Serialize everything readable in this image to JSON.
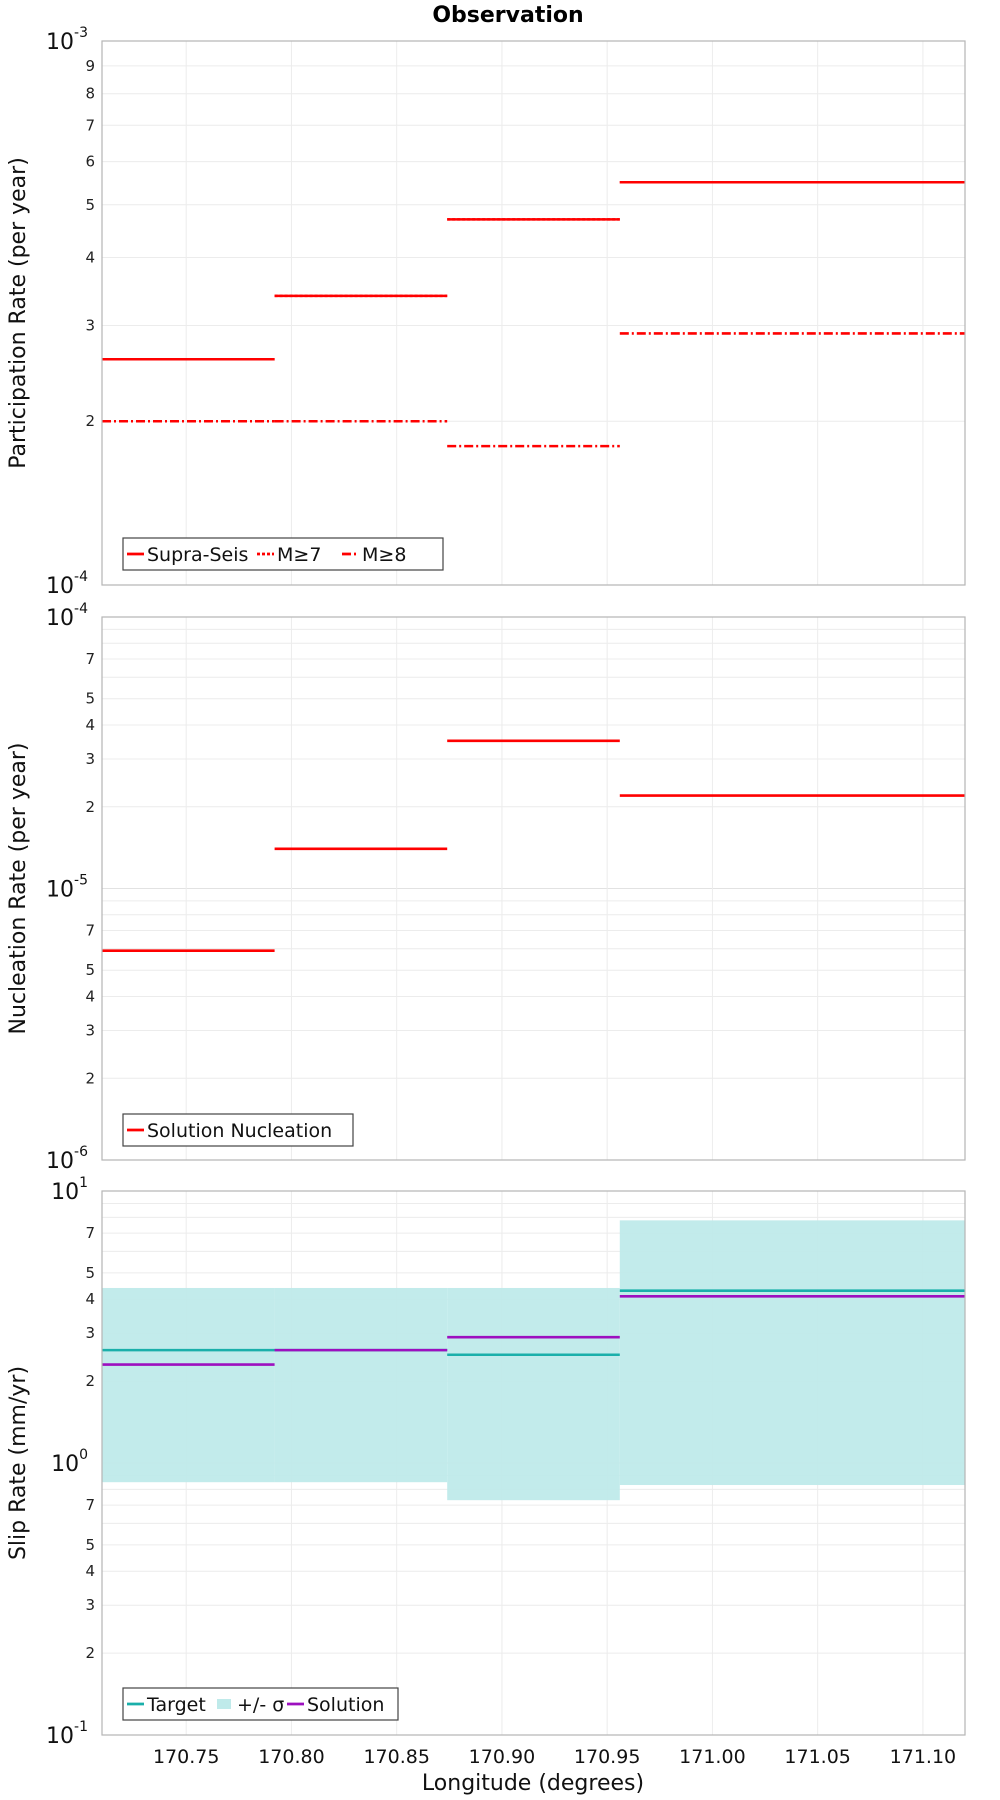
{
  "figure": {
    "title": "Observation",
    "xlabel": "Longitude (degrees)",
    "x_ticks": [
      170.75,
      170.8,
      170.85,
      170.9,
      170.95,
      171.0,
      171.05,
      171.1
    ],
    "x_tick_labels": [
      "170.75",
      "170.80",
      "170.85",
      "170.90",
      "170.95",
      "171.00",
      "171.05",
      "171.10"
    ],
    "xlim": [
      170.71,
      171.12
    ]
  },
  "chart_data": [
    {
      "type": "line",
      "step": true,
      "title": "Observation",
      "ylabel": "Participation Rate (per year)",
      "y_scale": "log",
      "ylim": [
        0.0001,
        0.001
      ],
      "grid": true,
      "legend_position": "bottom-left",
      "x_bins": [
        [
          170.71,
          170.792
        ],
        [
          170.792,
          170.874
        ],
        [
          170.874,
          170.956
        ],
        [
          170.956,
          171.12
        ]
      ],
      "series": [
        {
          "name": "Supra-Seis",
          "style": "solid",
          "color": "#ff0000",
          "values": [
            0.00026,
            0.00034,
            0.00047,
            0.00055
          ]
        },
        {
          "name": "M≥7",
          "style": "dotted",
          "color": "#ff0000",
          "values": [
            0.00026,
            0.00034,
            0.00047,
            0.00055
          ]
        },
        {
          "name": "M≥8",
          "style": "dash-dot",
          "color": "#ff0000",
          "values": [
            0.0002,
            0.0002,
            0.00018,
            0.00029
          ]
        }
      ]
    },
    {
      "type": "line",
      "step": true,
      "ylabel": "Nucleation Rate (per year)",
      "y_scale": "log",
      "ylim": [
        1e-06,
        0.0001
      ],
      "grid": true,
      "legend_position": "bottom-left",
      "x_bins": [
        [
          170.71,
          170.792
        ],
        [
          170.792,
          170.874
        ],
        [
          170.874,
          170.956
        ],
        [
          170.956,
          171.12
        ]
      ],
      "series": [
        {
          "name": "Solution Nucleation",
          "style": "solid",
          "color": "#ff0000",
          "values": [
            5.9e-06,
            1.4e-05,
            3.5e-05,
            2.2e-05
          ]
        }
      ]
    },
    {
      "type": "line",
      "step": true,
      "ylabel": "Slip Rate (mm/yr)",
      "y_scale": "log",
      "ylim": [
        0.1,
        10
      ],
      "grid": true,
      "legend_position": "bottom-left",
      "x_bins": [
        [
          170.71,
          170.792
        ],
        [
          170.792,
          170.874
        ],
        [
          170.874,
          170.956
        ],
        [
          170.956,
          171.12
        ]
      ],
      "series": [
        {
          "name": "Target",
          "style": "solid",
          "color": "#1aafaa",
          "values": [
            2.6,
            2.6,
            2.5,
            4.3
          ]
        },
        {
          "name": "+/- σ",
          "style": "band",
          "color": "#bfeaea",
          "lower": [
            0.85,
            0.85,
            0.73,
            0.83
          ],
          "upper": [
            4.4,
            4.4,
            4.4,
            7.8
          ]
        },
        {
          "name": "Solution",
          "style": "solid",
          "color": "#9d0fbf",
          "values": [
            2.3,
            2.6,
            2.9,
            4.1
          ]
        }
      ]
    }
  ]
}
